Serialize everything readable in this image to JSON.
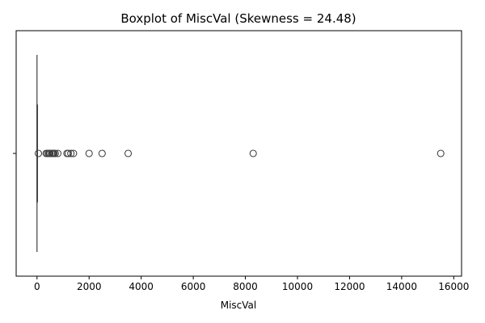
{
  "chart_data": {
    "type": "boxplot",
    "title": "Boxplot of MiscVal (Skewness = 24.48)",
    "xlabel": "MiscVal",
    "ylabel": "",
    "xlim": [
      -800,
      16300
    ],
    "xticks": [
      0,
      2000,
      4000,
      6000,
      8000,
      10000,
      12000,
      14000,
      16000
    ],
    "xtick_labels": [
      "0",
      "2000",
      "4000",
      "6000",
      "8000",
      "10000",
      "12000",
      "14000",
      "16000"
    ],
    "ytick_labels": [
      ""
    ],
    "box": {
      "min": 0,
      "q1": 0,
      "median": 0,
      "q3": 0,
      "max": 0
    },
    "outliers": [
      54,
      350,
      400,
      450,
      480,
      500,
      560,
      600,
      620,
      650,
      700,
      800,
      1150,
      1200,
      1300,
      1400,
      2000,
      2500,
      3500,
      8300,
      15500
    ],
    "colors": {
      "box": "#4c72b0",
      "line": "#3f3f3f",
      "axis": "#000000"
    }
  }
}
